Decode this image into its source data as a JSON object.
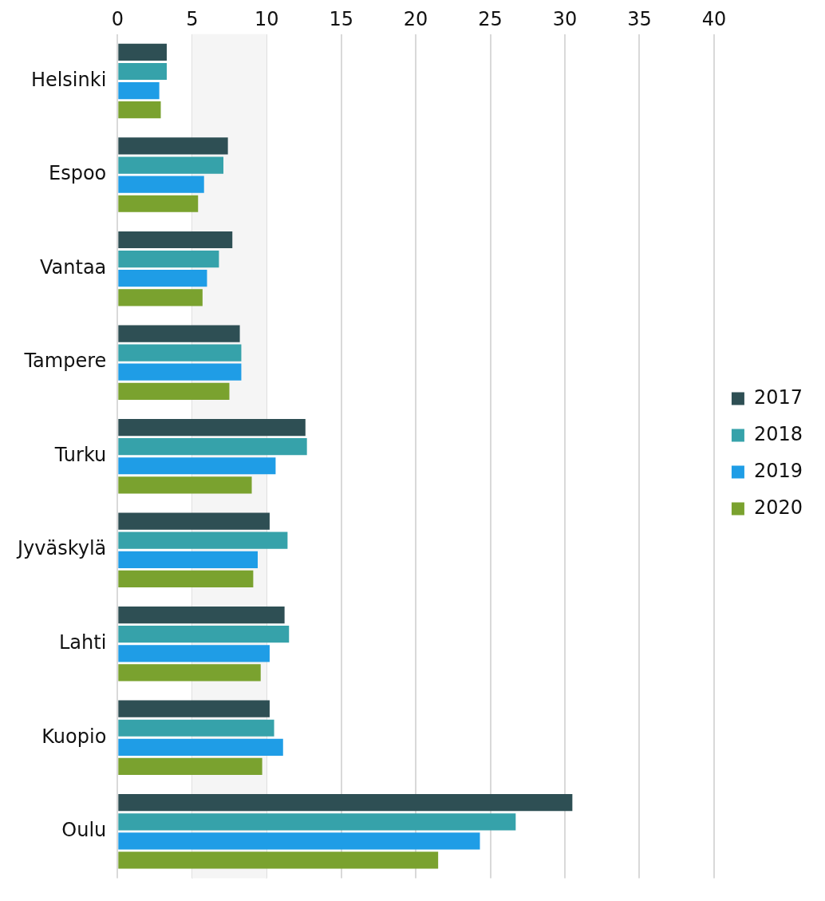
{
  "chart_data": {
    "type": "bar",
    "orientation": "horizontal",
    "categories": [
      "Helsinki",
      "Espoo",
      "Vantaa",
      "Tampere",
      "Turku",
      "Jyväskylä",
      "Lahti",
      "Kuopio",
      "Oulu"
    ],
    "series": [
      {
        "name": "2017",
        "color": "#2e4f54",
        "values": [
          3.3,
          7.4,
          7.7,
          8.2,
          12.6,
          10.2,
          11.2,
          10.2,
          30.5
        ]
      },
      {
        "name": "2018",
        "color": "#36a2aa",
        "values": [
          3.3,
          7.1,
          6.8,
          8.3,
          12.7,
          11.4,
          11.5,
          10.5,
          26.7
        ]
      },
      {
        "name": "2019",
        "color": "#1f9de6",
        "values": [
          2.8,
          5.8,
          6.0,
          8.3,
          10.6,
          9.4,
          10.2,
          11.1,
          24.3
        ]
      },
      {
        "name": "2020",
        "color": "#7aa22f",
        "values": [
          2.9,
          5.4,
          5.7,
          7.5,
          9.0,
          9.1,
          9.6,
          9.7,
          21.5
        ]
      }
    ],
    "xlim": [
      0,
      40
    ],
    "xticks": [
      0,
      5,
      10,
      15,
      20,
      25,
      30,
      35,
      40
    ],
    "grid": "x",
    "legend": "right",
    "bands": [
      {
        "axis": "x",
        "from": 5,
        "to": 10,
        "color": "#f5f5f5"
      }
    ]
  }
}
